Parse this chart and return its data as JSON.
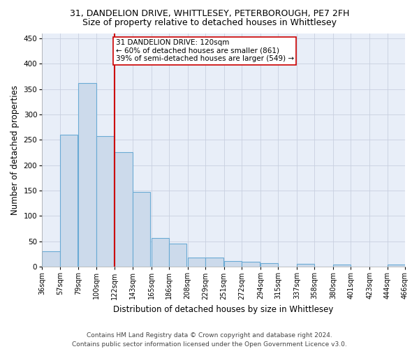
{
  "title_line1": "31, DANDELION DRIVE, WHITTLESEY, PETERBOROUGH, PE7 2FH",
  "title_line2": "Size of property relative to detached houses in Whittlesey",
  "xlabel": "Distribution of detached houses by size in Whittlesey",
  "ylabel": "Number of detached properties",
  "bar_left_edges": [
    36,
    57,
    79,
    100,
    122,
    143,
    165,
    186,
    208,
    229,
    251,
    272,
    294,
    315,
    337,
    358,
    380,
    401,
    423,
    444
  ],
  "bar_heights": [
    31,
    260,
    362,
    257,
    225,
    148,
    56,
    45,
    18,
    18,
    11,
    10,
    7,
    0,
    6,
    0,
    4,
    0,
    0,
    4
  ],
  "bin_width": 21,
  "bar_color": "#ccdaeb",
  "bar_edge_color": "#6aaad4",
  "bar_edge_width": 0.8,
  "reference_line_x": 122,
  "reference_line_color": "#cc0000",
  "annotation_text": "31 DANDELION DRIVE: 120sqm\n← 60% of detached houses are smaller (861)\n39% of semi-detached houses are larger (549) →",
  "annotation_box_color": "#ffffff",
  "annotation_box_edge": "#cc0000",
  "ylim": [
    0,
    460
  ],
  "yticks": [
    0,
    50,
    100,
    150,
    200,
    250,
    300,
    350,
    400,
    450
  ],
  "xtick_labels": [
    "36sqm",
    "57sqm",
    "79sqm",
    "100sqm",
    "122sqm",
    "143sqm",
    "165sqm",
    "186sqm",
    "208sqm",
    "229sqm",
    "251sqm",
    "272sqm",
    "294sqm",
    "315sqm",
    "337sqm",
    "358sqm",
    "380sqm",
    "401sqm",
    "423sqm",
    "444sqm",
    "466sqm"
  ],
  "footer_line1": "Contains HM Land Registry data © Crown copyright and database right 2024.",
  "footer_line2": "Contains public sector information licensed under the Open Government Licence v3.0.",
  "bg_color": "#ffffff",
  "plot_bg_color": "#e8eef8",
  "grid_color": "#c8d0e0",
  "title_fontsize": 9,
  "subtitle_fontsize": 9,
  "axis_label_fontsize": 8.5,
  "tick_fontsize": 7,
  "footer_fontsize": 6.5,
  "annotation_fontsize": 7.5
}
